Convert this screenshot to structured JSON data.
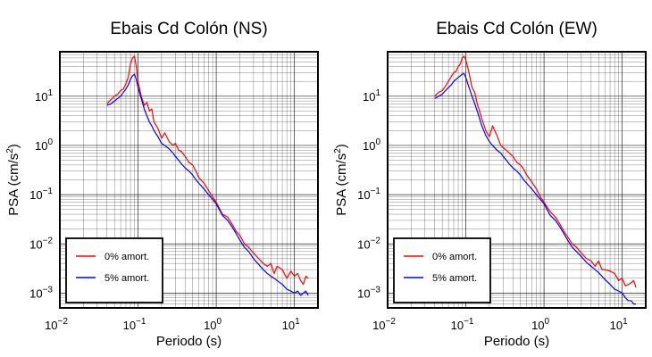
{
  "chart_data": [
    {
      "type": "line",
      "title": "Ebais Cd Colón (NS)",
      "xlabel": "Periodo (s)",
      "ylabel_main": "PSA (cm/s",
      "ylabel_sup": "2",
      "ylabel_close": ")",
      "x_scale": "log",
      "y_scale": "log",
      "xlim": [
        0.01,
        20
      ],
      "ylim": [
        0.0005,
        80
      ],
      "grid": true,
      "legend_position": "bottom-left",
      "x_ticks": [
        {
          "base": "10",
          "exp": "−2",
          "value": 0.01
        },
        {
          "base": "10",
          "exp": "−1",
          "value": 0.1
        },
        {
          "base": "10",
          "exp": "0",
          "value": 1
        },
        {
          "base": "10",
          "exp": "1",
          "value": 10
        }
      ],
      "y_ticks": [
        {
          "base": "10",
          "exp": "−3",
          "value": 0.001
        },
        {
          "base": "10",
          "exp": "−2",
          "value": 0.01
        },
        {
          "base": "10",
          "exp": "−1",
          "value": 0.1
        },
        {
          "base": "10",
          "exp": "0",
          "value": 1
        },
        {
          "base": "10",
          "exp": "1",
          "value": 10
        }
      ],
      "series": [
        {
          "name": "0% amort.",
          "color": "#ff0000",
          "x": [
            0.04,
            0.045,
            0.05,
            0.055,
            0.06,
            0.065,
            0.07,
            0.075,
            0.08,
            0.085,
            0.09,
            0.095,
            0.1,
            0.11,
            0.12,
            0.13,
            0.14,
            0.15,
            0.16,
            0.18,
            0.2,
            0.22,
            0.25,
            0.28,
            0.3,
            0.33,
            0.36,
            0.4,
            0.45,
            0.5,
            0.55,
            0.6,
            0.7,
            0.8,
            0.9,
            1.0,
            1.2,
            1.4,
            1.6,
            1.8,
            2.0,
            2.3,
            2.6,
            3.0,
            3.5,
            4.0,
            4.5,
            5.0,
            5.5,
            6.0,
            7.0,
            8.0,
            9.0,
            10.0,
            11.0,
            12.0,
            13.0,
            14.0,
            15.0
          ],
          "y": [
            7.0,
            8.5,
            10.0,
            11.0,
            13.0,
            14.0,
            18.0,
            24.0,
            45.0,
            60.0,
            65.0,
            40.0,
            20.0,
            10.0,
            6.5,
            7.5,
            5.0,
            5.5,
            3.0,
            2.2,
            1.4,
            1.8,
            1.2,
            1.0,
            1.1,
            0.8,
            0.75,
            0.6,
            0.45,
            0.4,
            0.3,
            0.22,
            0.17,
            0.12,
            0.09,
            0.07,
            0.04,
            0.035,
            0.025,
            0.018,
            0.015,
            0.01,
            0.0085,
            0.0065,
            0.005,
            0.004,
            0.0035,
            0.004,
            0.0025,
            0.0035,
            0.003,
            0.002,
            0.0028,
            0.0022,
            0.0025,
            0.0018,
            0.0015,
            0.0022,
            0.002
          ]
        },
        {
          "name": "5% amort.",
          "color": "#0000ff",
          "x": [
            0.04,
            0.045,
            0.05,
            0.055,
            0.06,
            0.065,
            0.07,
            0.075,
            0.08,
            0.085,
            0.09,
            0.095,
            0.1,
            0.11,
            0.12,
            0.13,
            0.14,
            0.15,
            0.16,
            0.18,
            0.2,
            0.22,
            0.25,
            0.28,
            0.3,
            0.33,
            0.36,
            0.4,
            0.45,
            0.5,
            0.55,
            0.6,
            0.7,
            0.8,
            0.9,
            1.0,
            1.2,
            1.4,
            1.6,
            1.8,
            2.0,
            2.3,
            2.6,
            3.0,
            3.5,
            4.0,
            4.5,
            5.0,
            5.5,
            6.0,
            7.0,
            8.0,
            9.0,
            10.0,
            11.0,
            12.0,
            13.0,
            14.0,
            15.0
          ],
          "y": [
            6.5,
            7.0,
            8.0,
            9.0,
            10.0,
            12.0,
            14.0,
            17.0,
            22.0,
            26.0,
            28.0,
            22.0,
            15.0,
            9.0,
            5.5,
            4.0,
            3.0,
            2.5,
            2.0,
            1.5,
            1.1,
            1.0,
            0.85,
            0.7,
            0.6,
            0.5,
            0.42,
            0.35,
            0.3,
            0.25,
            0.2,
            0.17,
            0.13,
            0.1,
            0.08,
            0.065,
            0.038,
            0.03,
            0.022,
            0.016,
            0.012,
            0.0085,
            0.007,
            0.005,
            0.0038,
            0.003,
            0.0025,
            0.0022,
            0.002,
            0.0018,
            0.0015,
            0.0012,
            0.0011,
            0.001,
            0.0011,
            0.0009,
            0.001,
            0.0011,
            0.0009
          ]
        }
      ]
    },
    {
      "type": "line",
      "title": "Ebais Cd Colón (EW)",
      "xlabel": "Periodo (s)",
      "ylabel_main": "PSA (cm/s",
      "ylabel_sup": "2",
      "ylabel_close": ")",
      "x_scale": "log",
      "y_scale": "log",
      "xlim": [
        0.01,
        20
      ],
      "ylim": [
        0.0005,
        80
      ],
      "grid": true,
      "legend_position": "bottom-left",
      "x_ticks": [
        {
          "base": "10",
          "exp": "−2",
          "value": 0.01
        },
        {
          "base": "10",
          "exp": "−1",
          "value": 0.1
        },
        {
          "base": "10",
          "exp": "0",
          "value": 1
        },
        {
          "base": "10",
          "exp": "1",
          "value": 10
        }
      ],
      "y_ticks": [
        {
          "base": "10",
          "exp": "−3",
          "value": 0.001
        },
        {
          "base": "10",
          "exp": "−2",
          "value": 0.01
        },
        {
          "base": "10",
          "exp": "−1",
          "value": 0.1
        },
        {
          "base": "10",
          "exp": "0",
          "value": 1
        },
        {
          "base": "10",
          "exp": "1",
          "value": 10
        }
      ],
      "series": [
        {
          "name": "0% amort.",
          "color": "#ff0000",
          "x": [
            0.04,
            0.045,
            0.05,
            0.055,
            0.06,
            0.065,
            0.07,
            0.075,
            0.08,
            0.085,
            0.09,
            0.095,
            0.1,
            0.11,
            0.12,
            0.13,
            0.14,
            0.15,
            0.16,
            0.18,
            0.2,
            0.22,
            0.25,
            0.28,
            0.3,
            0.33,
            0.36,
            0.4,
            0.45,
            0.5,
            0.55,
            0.6,
            0.7,
            0.8,
            0.9,
            1.0,
            1.2,
            1.4,
            1.6,
            1.8,
            2.0,
            2.3,
            2.6,
            3.0,
            3.5,
            4.0,
            4.5,
            5.0,
            5.5,
            6.0,
            7.0,
            8.0,
            9.0,
            10.0,
            11.0,
            12.0,
            13.0,
            14.0,
            15.0
          ],
          "y": [
            10.0,
            12.0,
            13.0,
            16.0,
            20.0,
            25.0,
            30.0,
            32.0,
            40.0,
            45.0,
            60.0,
            65.0,
            55.0,
            30.0,
            15.0,
            12.0,
            7.0,
            5.0,
            3.5,
            2.0,
            1.5,
            2.5,
            1.6,
            1.0,
            0.9,
            0.8,
            0.7,
            0.6,
            0.45,
            0.4,
            0.33,
            0.25,
            0.18,
            0.13,
            0.09,
            0.07,
            0.045,
            0.035,
            0.025,
            0.018,
            0.014,
            0.01,
            0.0085,
            0.0065,
            0.005,
            0.0045,
            0.0035,
            0.0045,
            0.003,
            0.003,
            0.0028,
            0.0025,
            0.0018,
            0.002,
            0.0014,
            0.0015,
            0.0016,
            0.0018,
            0.0013
          ]
        },
        {
          "name": "5% amort.",
          "color": "#0000ff",
          "x": [
            0.04,
            0.045,
            0.05,
            0.055,
            0.06,
            0.065,
            0.07,
            0.075,
            0.08,
            0.085,
            0.09,
            0.095,
            0.1,
            0.11,
            0.12,
            0.13,
            0.14,
            0.15,
            0.16,
            0.18,
            0.2,
            0.22,
            0.25,
            0.28,
            0.3,
            0.33,
            0.36,
            0.4,
            0.45,
            0.5,
            0.55,
            0.6,
            0.7,
            0.8,
            0.9,
            1.0,
            1.2,
            1.4,
            1.6,
            1.8,
            2.0,
            2.3,
            2.6,
            3.0,
            3.5,
            4.0,
            4.5,
            5.0,
            5.5,
            6.0,
            7.0,
            8.0,
            9.0,
            10.0,
            11.0,
            12.0,
            13.0,
            14.0,
            15.0
          ],
          "y": [
            9.0,
            10.0,
            11.0,
            13.0,
            15.0,
            17.0,
            20.0,
            22.0,
            24.0,
            26.0,
            28.0,
            29.0,
            24.0,
            15.0,
            10.0,
            7.0,
            5.0,
            3.5,
            2.5,
            1.6,
            1.2,
            1.0,
            0.8,
            0.7,
            0.6,
            0.5,
            0.42,
            0.35,
            0.3,
            0.25,
            0.2,
            0.17,
            0.13,
            0.1,
            0.08,
            0.065,
            0.038,
            0.03,
            0.022,
            0.016,
            0.012,
            0.0085,
            0.007,
            0.0055,
            0.0042,
            0.0035,
            0.003,
            0.0026,
            0.0022,
            0.0019,
            0.0015,
            0.0012,
            0.0011,
            0.001,
            0.0008,
            0.0007,
            0.0007,
            0.0006,
            0.0006
          ]
        }
      ]
    }
  ]
}
